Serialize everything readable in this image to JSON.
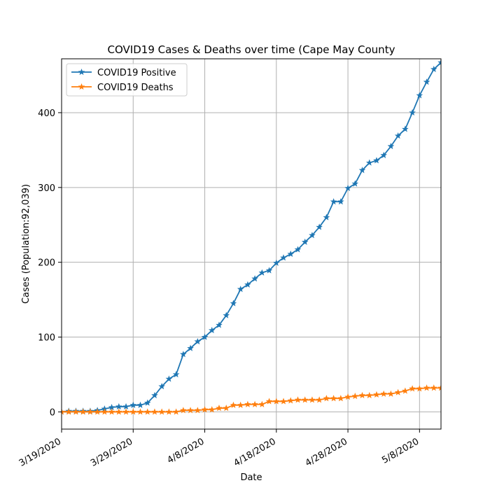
{
  "chart_data": {
    "type": "line",
    "title": "COVID19 Cases & Deaths over time (Cape May County",
    "xlabel": "Date",
    "ylabel": "Cases (Population:92,039)",
    "x_ticks": [
      "3/19/2020",
      "3/29/2020",
      "4/8/2020",
      "4/18/2020",
      "4/28/2020",
      "5/8/2020"
    ],
    "y_ticks": [
      "0",
      "100",
      "200",
      "300",
      "400"
    ],
    "ylim": [
      -23,
      472
    ],
    "xlim": [
      "3/19/2020",
      "5/11/2020"
    ],
    "grid": true,
    "legend_position": "top-left",
    "x": [
      "3/19/2020",
      "3/20/2020",
      "3/21/2020",
      "3/22/2020",
      "3/23/2020",
      "3/24/2020",
      "3/25/2020",
      "3/26/2020",
      "3/27/2020",
      "3/28/2020",
      "3/29/2020",
      "3/30/2020",
      "3/31/2020",
      "4/1/2020",
      "4/2/2020",
      "4/3/2020",
      "4/4/2020",
      "4/5/2020",
      "4/6/2020",
      "4/7/2020",
      "4/8/2020",
      "4/9/2020",
      "4/10/2020",
      "4/11/2020",
      "4/12/2020",
      "4/13/2020",
      "4/14/2020",
      "4/15/2020",
      "4/16/2020",
      "4/17/2020",
      "4/18/2020",
      "4/19/2020",
      "4/20/2020",
      "4/21/2020",
      "4/22/2020",
      "4/23/2020",
      "4/24/2020",
      "4/25/2020",
      "4/26/2020",
      "4/27/2020",
      "4/28/2020",
      "4/29/2020",
      "4/30/2020",
      "5/1/2020",
      "5/2/2020",
      "5/3/2020",
      "5/4/2020",
      "5/5/2020",
      "5/6/2020",
      "5/7/2020",
      "5/8/2020",
      "5/9/2020",
      "5/10/2020",
      "5/11/2020"
    ],
    "series": [
      {
        "name": "COVID19 Positive",
        "color": "#1f77b4",
        "marker": "star",
        "values": [
          0,
          1,
          1,
          1,
          1,
          2,
          4,
          6,
          7,
          7,
          9,
          9,
          12,
          22,
          34,
          44,
          50,
          77,
          85,
          94,
          100,
          109,
          116,
          129,
          145,
          164,
          170,
          178,
          186,
          189,
          199,
          206,
          211,
          217,
          227,
          236,
          247,
          260,
          281,
          281,
          299,
          305,
          323,
          333,
          336,
          343,
          355,
          369,
          378,
          400,
          423,
          441,
          458,
          467
        ]
      },
      {
        "name": "COVID19 Deaths",
        "color": "#ff7f0e",
        "marker": "star",
        "values": [
          0,
          0,
          0,
          0,
          0,
          0,
          0,
          0,
          0,
          0,
          0,
          0,
          0,
          0,
          0,
          0,
          0,
          2,
          2,
          2,
          3,
          3,
          5,
          5,
          9,
          9,
          10,
          10,
          10,
          14,
          14,
          14,
          15,
          16,
          16,
          16,
          16,
          18,
          18,
          18,
          20,
          21,
          22,
          22,
          23,
          24,
          24,
          26,
          28,
          31,
          31,
          32,
          32,
          32
        ]
      }
    ]
  }
}
